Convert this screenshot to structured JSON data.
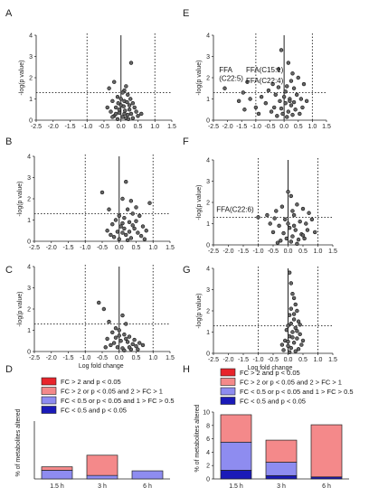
{
  "chart_data": [
    {
      "panel": "A",
      "type": "scatter",
      "xlabel": "",
      "ylabel": "-log(p value)",
      "xlim": [
        -2.5,
        1.5
      ],
      "ylim": [
        0,
        4
      ],
      "xticks": [
        "-2.5",
        "-2.0",
        "-1.5",
        "-1.0",
        "-0.5",
        "0.0",
        "0.5",
        "1.0",
        "1.5"
      ],
      "yticks": [
        "0",
        "1",
        "2",
        "3",
        "4"
      ],
      "threshold_x": [
        -1.0,
        1.0
      ],
      "threshold_y": 1.3,
      "points": [
        [
          0.3,
          2.7
        ],
        [
          -0.2,
          1.8
        ],
        [
          -0.35,
          1.5
        ],
        [
          0.1,
          1.4
        ],
        [
          0.15,
          1.6
        ],
        [
          -0.1,
          1.1
        ],
        [
          0.05,
          1.3
        ],
        [
          0.2,
          1.2
        ],
        [
          -0.25,
          0.9
        ],
        [
          0.35,
          0.8
        ],
        [
          0.0,
          0.7
        ],
        [
          -0.15,
          0.6
        ],
        [
          0.25,
          0.5
        ],
        [
          0.4,
          0.6
        ],
        [
          -0.3,
          0.4
        ],
        [
          0.1,
          0.3
        ],
        [
          -0.05,
          0.35
        ],
        [
          0.2,
          0.25
        ],
        [
          0.3,
          0.3
        ],
        [
          -0.2,
          0.2
        ],
        [
          0.05,
          0.15
        ],
        [
          0.15,
          0.1
        ],
        [
          -0.1,
          0.05
        ],
        [
          0.45,
          0.4
        ],
        [
          0.5,
          0.2
        ],
        [
          -0.4,
          0.6
        ],
        [
          0.0,
          1.0
        ],
        [
          0.1,
          0.9
        ],
        [
          -0.05,
          0.5
        ],
        [
          0.25,
          0.7
        ],
        [
          0.35,
          0.1
        ],
        [
          -0.15,
          0.3
        ],
        [
          0.12,
          0.45
        ],
        [
          0.22,
          0.05
        ],
        [
          -0.25,
          0.15
        ],
        [
          0.6,
          0.3
        ],
        [
          0.08,
          0.65
        ],
        [
          -0.08,
          0.8
        ],
        [
          0.18,
          0.85
        ],
        [
          0.28,
          1.0
        ]
      ],
      "annotations": []
    },
    {
      "panel": "B",
      "type": "scatter",
      "xlabel": "",
      "ylabel": "-log(p value)",
      "xlim": [
        -2.5,
        1.5
      ],
      "ylim": [
        0,
        4
      ],
      "xticks": [
        "-2.5",
        "-2.0",
        "-1.5",
        "-1.0",
        "-0.5",
        "0.0",
        "0.5",
        "1.0",
        "1.5"
      ],
      "yticks": [
        "0",
        "1",
        "2",
        "3",
        "4"
      ],
      "threshold_x": [
        -1.0,
        1.0
      ],
      "threshold_y": 1.3,
      "points": [
        [
          -0.5,
          2.3
        ],
        [
          0.2,
          2.8
        ],
        [
          0.1,
          2.0
        ],
        [
          0.35,
          1.9
        ],
        [
          0.9,
          1.8
        ],
        [
          -0.3,
          1.5
        ],
        [
          0.5,
          1.6
        ],
        [
          0.25,
          1.5
        ],
        [
          0.0,
          1.2
        ],
        [
          -0.1,
          1.0
        ],
        [
          0.15,
          1.1
        ],
        [
          0.4,
          1.3
        ],
        [
          0.6,
          1.2
        ],
        [
          -0.2,
          0.8
        ],
        [
          0.05,
          0.7
        ],
        [
          0.3,
          0.9
        ],
        [
          0.45,
          0.6
        ],
        [
          0.7,
          0.7
        ],
        [
          -0.35,
          0.5
        ],
        [
          0.1,
          0.4
        ],
        [
          0.2,
          0.3
        ],
        [
          0.55,
          0.4
        ],
        [
          0.8,
          0.5
        ],
        [
          -0.15,
          0.2
        ],
        [
          0.0,
          0.1
        ],
        [
          0.35,
          0.15
        ],
        [
          0.65,
          0.25
        ],
        [
          0.25,
          0.05
        ],
        [
          -0.05,
          0.45
        ],
        [
          0.5,
          0.95
        ],
        [
          0.15,
          0.6
        ],
        [
          0.4,
          0.75
        ],
        [
          -0.25,
          0.3
        ],
        [
          0.75,
          0.1
        ],
        [
          0.3,
          0.45
        ],
        [
          0.1,
          0.85
        ]
      ],
      "annotations": []
    },
    {
      "panel": "C",
      "type": "scatter",
      "xlabel": "Log fold change",
      "ylabel": "-log(p value)",
      "xlim": [
        -2.5,
        1.5
      ],
      "ylim": [
        0,
        4
      ],
      "xticks": [
        "-2.5",
        "-2.0",
        "-1.5",
        "-1.0",
        "-0.5",
        "0.0",
        "0.5",
        "1.0",
        "1.5"
      ],
      "yticks": [
        "0",
        "1",
        "2",
        "3",
        "4"
      ],
      "threshold_x": [
        -1.0,
        1.0
      ],
      "threshold_y": 1.3,
      "points": [
        [
          -0.6,
          2.3
        ],
        [
          -0.45,
          2.0
        ],
        [
          0.1,
          1.7
        ],
        [
          -0.3,
          1.4
        ],
        [
          0.2,
          1.3
        ],
        [
          -0.1,
          1.1
        ],
        [
          0.0,
          1.0
        ],
        [
          -0.2,
          0.9
        ],
        [
          0.15,
          0.8
        ],
        [
          0.3,
          0.7
        ],
        [
          -0.35,
          0.6
        ],
        [
          0.05,
          0.5
        ],
        [
          0.25,
          0.45
        ],
        [
          0.4,
          0.35
        ],
        [
          -0.15,
          0.4
        ],
        [
          0.5,
          0.25
        ],
        [
          -0.05,
          0.2
        ],
        [
          0.1,
          0.15
        ],
        [
          0.35,
          0.1
        ],
        [
          -0.25,
          0.3
        ],
        [
          0.2,
          0.6
        ],
        [
          0.45,
          0.55
        ],
        [
          0.6,
          0.4
        ],
        [
          -0.4,
          0.2
        ],
        [
          0.0,
          0.75
        ],
        [
          0.3,
          0.2
        ],
        [
          0.15,
          0.05
        ],
        [
          -0.1,
          0.65
        ],
        [
          0.55,
          0.1
        ],
        [
          0.7,
          0.3
        ]
      ],
      "annotations": []
    },
    {
      "panel": "E",
      "type": "scatter",
      "xlabel": "",
      "ylabel": "-log(p value)",
      "xlim": [
        -2.5,
        1.5
      ],
      "ylim": [
        0,
        4
      ],
      "xticks": [
        "-2.5",
        "-2.0",
        "-1.5",
        "-1.0",
        "-0.5",
        "0.0",
        "0.5",
        "1.0",
        "1.5"
      ],
      "yticks": [
        "0",
        "1",
        "2",
        "3",
        "4"
      ],
      "threshold_x": [
        -1.0,
        1.0
      ],
      "threshold_y": 1.3,
      "points": [
        [
          -2.1,
          1.5
        ],
        [
          -1.3,
          1.8
        ],
        [
          -1.45,
          1.3
        ],
        [
          -0.1,
          3.3
        ],
        [
          0.15,
          2.7
        ],
        [
          -0.2,
          2.4
        ],
        [
          0.3,
          2.2
        ],
        [
          0.5,
          2.0
        ],
        [
          0.7,
          1.7
        ],
        [
          -0.4,
          1.7
        ],
        [
          0.1,
          1.6
        ],
        [
          -0.55,
          1.4
        ],
        [
          0.35,
          1.5
        ],
        [
          -0.3,
          1.2
        ],
        [
          0.0,
          1.1
        ],
        [
          0.2,
          1.0
        ],
        [
          0.45,
          1.2
        ],
        [
          0.6,
          1.0
        ],
        [
          -0.15,
          0.9
        ],
        [
          0.05,
          0.8
        ],
        [
          0.25,
          0.7
        ],
        [
          -0.35,
          0.6
        ],
        [
          0.4,
          0.5
        ],
        [
          0.15,
          0.4
        ],
        [
          -0.05,
          0.3
        ],
        [
          0.3,
          0.25
        ],
        [
          -0.25,
          0.2
        ],
        [
          0.55,
          0.3
        ],
        [
          0.1,
          0.15
        ],
        [
          -0.45,
          0.4
        ],
        [
          0.65,
          0.6
        ],
        [
          0.2,
          0.9
        ],
        [
          -0.1,
          0.55
        ],
        [
          0.35,
          0.85
        ],
        [
          -1.6,
          0.9
        ],
        [
          -1.2,
          1.0
        ],
        [
          -1.0,
          0.6
        ],
        [
          -0.8,
          1.1
        ],
        [
          -0.65,
          0.8
        ],
        [
          0.8,
          0.9
        ],
        [
          0.05,
          1.35
        ],
        [
          -0.2,
          1.55
        ],
        [
          0.25,
          1.85
        ],
        [
          -1.4,
          0.5
        ],
        [
          -0.9,
          0.3
        ]
      ],
      "annotations": [
        {
          "text": "FFA",
          "x": -2.3,
          "y": 2.25
        },
        {
          "text": "(C22:5)",
          "x": -2.3,
          "y": 1.85
        },
        {
          "text": "FFA(C15:1)",
          "x": -1.35,
          "y": 2.25
        },
        {
          "text": "FFA(C22:4)",
          "x": -1.35,
          "y": 1.75
        }
      ]
    },
    {
      "panel": "F",
      "type": "scatter",
      "xlabel": "",
      "ylabel": "-log(p value)",
      "xlim": [
        -2.5,
        1.5
      ],
      "ylim": [
        0,
        4
      ],
      "xticks": [
        "-2.5",
        "-2.0",
        "-1.5",
        "-1.0",
        "-0.5",
        "0.0",
        "0.5",
        "1.0",
        "1.5"
      ],
      "yticks": [
        "0",
        "1",
        "2",
        "3",
        "4"
      ],
      "threshold_x": [
        -1.0,
        1.0
      ],
      "threshold_y": 1.3,
      "points": [
        [
          -1.0,
          1.3
        ],
        [
          0.0,
          2.5
        ],
        [
          0.1,
          2.3
        ],
        [
          -0.2,
          1.8
        ],
        [
          0.3,
          1.9
        ],
        [
          0.5,
          1.7
        ],
        [
          0.7,
          1.5
        ],
        [
          -0.4,
          1.6
        ],
        [
          0.2,
          1.4
        ],
        [
          -0.1,
          1.2
        ],
        [
          0.4,
          1.1
        ],
        [
          0.6,
          1.0
        ],
        [
          -0.3,
          0.9
        ],
        [
          0.05,
          0.8
        ],
        [
          0.25,
          0.7
        ],
        [
          -0.5,
          0.6
        ],
        [
          0.45,
          0.5
        ],
        [
          0.15,
          0.4
        ],
        [
          -0.05,
          0.3
        ],
        [
          0.35,
          0.25
        ],
        [
          -0.25,
          0.2
        ],
        [
          0.55,
          0.3
        ],
        [
          0.1,
          0.15
        ],
        [
          -0.6,
          1.0
        ],
        [
          0.65,
          0.7
        ],
        [
          0.2,
          0.9
        ],
        [
          -0.15,
          0.55
        ],
        [
          0.8,
          1.2
        ],
        [
          0.3,
          0.05
        ],
        [
          -0.35,
          0.1
        ],
        [
          0.0,
          1.0
        ],
        [
          -0.7,
          1.4
        ],
        [
          0.5,
          0.45
        ],
        [
          0.9,
          0.6
        ],
        [
          -0.45,
          1.25
        ],
        [
          0.15,
          1.6
        ]
      ],
      "annotations": [
        {
          "text": "FFA(C22:6)",
          "x": -2.4,
          "y": 1.55
        }
      ]
    },
    {
      "panel": "G",
      "type": "scatter",
      "xlabel": "Log fold change",
      "ylabel": "-log(p value)",
      "xlim": [
        -2.5,
        1.5
      ],
      "ylim": [
        0,
        4
      ],
      "xticks": [
        "-2.5",
        "-2.0",
        "-1.5",
        "-1.0",
        "-0.5",
        "0.0",
        "0.5",
        "1.0",
        "1.5"
      ],
      "yticks": [
        "0",
        "1",
        "2",
        "3",
        "4"
      ],
      "threshold_x": [
        -1.0,
        1.0
      ],
      "threshold_y": 1.3,
      "points": [
        [
          0.05,
          3.8
        ],
        [
          0.1,
          3.3
        ],
        [
          0.15,
          2.8
        ],
        [
          0.2,
          2.6
        ],
        [
          0.25,
          2.3
        ],
        [
          0.1,
          2.1
        ],
        [
          0.3,
          2.0
        ],
        [
          0.05,
          1.8
        ],
        [
          0.2,
          1.6
        ],
        [
          0.35,
          1.5
        ],
        [
          0.1,
          1.4
        ],
        [
          0.0,
          1.3
        ],
        [
          0.25,
          1.2
        ],
        [
          -0.05,
          1.1
        ],
        [
          0.15,
          1.0
        ],
        [
          0.4,
          0.9
        ],
        [
          0.05,
          0.8
        ],
        [
          0.3,
          0.7
        ],
        [
          -0.1,
          0.6
        ],
        [
          0.2,
          0.5
        ],
        [
          0.45,
          0.4
        ],
        [
          0.0,
          0.35
        ],
        [
          0.1,
          0.25
        ],
        [
          0.35,
          0.2
        ],
        [
          -0.15,
          0.15
        ],
        [
          0.25,
          0.1
        ],
        [
          0.05,
          0.05
        ],
        [
          0.5,
          0.6
        ],
        [
          -0.2,
          0.4
        ],
        [
          0.15,
          0.75
        ],
        [
          0.3,
          1.05
        ],
        [
          0.4,
          1.35
        ],
        [
          0.2,
          1.85
        ],
        [
          0.0,
          0.55
        ]
      ],
      "annotations": []
    },
    {
      "panel": "D",
      "type": "bar",
      "stacked": true,
      "ylabel": "% of metabolites altered",
      "categories": [
        "1.5 h",
        "3 h",
        "6 h"
      ],
      "ylim": [
        0,
        10
      ],
      "legend": [
        {
          "label": "FC > 2 and p < 0.05",
          "color": "#e8242b"
        },
        {
          "label": "FC > 2 or p < 0.05 and 2 > FC > 1",
          "color": "#f4898a"
        },
        {
          "label": "FC < 0.5 or p < 0.05 and 1 > FC > 0.5",
          "color": "#8e8cf0"
        },
        {
          "label": "FC < 0.5 and p < 0.05",
          "color": "#1a1ab8"
        }
      ],
      "series": [
        {
          "values": [
            0.0,
            0.0,
            0.0
          ]
        },
        {
          "values": [
            0.6,
            3.5,
            0.0
          ]
        },
        {
          "values": [
            1.5,
            0.6,
            1.4
          ]
        },
        {
          "values": [
            0.0,
            0.0,
            0.0
          ]
        }
      ]
    },
    {
      "panel": "H",
      "type": "bar",
      "stacked": true,
      "ylabel": "% of metabolites altered",
      "categories": [
        "1.5 h",
        "3 h",
        "6 h"
      ],
      "ylim": [
        0,
        10
      ],
      "yticks": [
        "0",
        "2",
        "4",
        "6",
        "8",
        "10"
      ],
      "legend": [
        {
          "label": "FC > 2 and p < 0.05",
          "color": "#e8242b"
        },
        {
          "label": "FC > 2 or p < 0.05 and 2 > FC > 1",
          "color": "#f4898a"
        },
        {
          "label": "FC < 0.5 or p < 0.05 and 1 > FC > 0.5",
          "color": "#8e8cf0"
        },
        {
          "label": "FC < 0.5 and p < 0.05",
          "color": "#1a1ab8"
        }
      ],
      "series": [
        {
          "values": [
            0.0,
            0.0,
            0.0
          ]
        },
        {
          "values": [
            4.1,
            3.3,
            7.8
          ]
        },
        {
          "values": [
            4.2,
            2.0,
            0.0
          ]
        },
        {
          "values": [
            1.3,
            0.5,
            0.3
          ]
        }
      ]
    }
  ],
  "labels": {
    "A": "A",
    "B": "B",
    "C": "C",
    "D": "D",
    "E": "E",
    "F": "F",
    "G": "G",
    "H": "H"
  }
}
